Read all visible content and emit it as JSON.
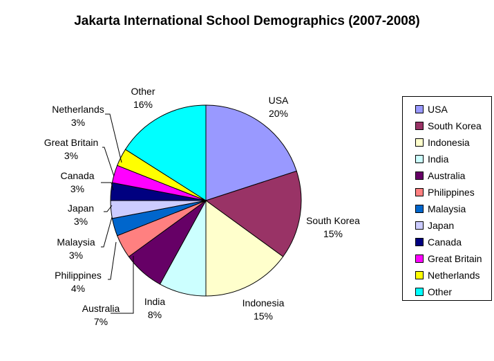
{
  "chart_data": {
    "type": "pie",
    "title": "Jakarta International School Demographics (2007-2008)",
    "slices": [
      {
        "label": "USA",
        "value": 20,
        "value_label": "20%",
        "color": "#9999FF"
      },
      {
        "label": "South Korea",
        "value": 15,
        "value_label": "15%",
        "color": "#993366"
      },
      {
        "label": "Indonesia",
        "value": 15,
        "value_label": "15%",
        "color": "#FFFFCC"
      },
      {
        "label": "India",
        "value": 8,
        "value_label": "8%",
        "color": "#CCFFFF"
      },
      {
        "label": "Australia",
        "value": 7,
        "value_label": "7%",
        "color": "#660066"
      },
      {
        "label": "Philippines",
        "value": 4,
        "value_label": "4%",
        "color": "#FF8080"
      },
      {
        "label": "Malaysia",
        "value": 3,
        "value_label": "3%",
        "color": "#0066CC"
      },
      {
        "label": "Japan",
        "value": 3,
        "value_label": "3%",
        "color": "#CCCCFF"
      },
      {
        "label": "Canada",
        "value": 3,
        "value_label": "3%",
        "color": "#000080"
      },
      {
        "label": "Great Britain",
        "value": 3,
        "value_label": "3%",
        "color": "#FF00FF"
      },
      {
        "label": "Netherlands",
        "value": 3,
        "value_label": "3%",
        "color": "#FFFF00"
      },
      {
        "label": "Other",
        "value": 16,
        "value_label": "16%",
        "color": "#00FFFF"
      }
    ],
    "legend_position": "right"
  }
}
